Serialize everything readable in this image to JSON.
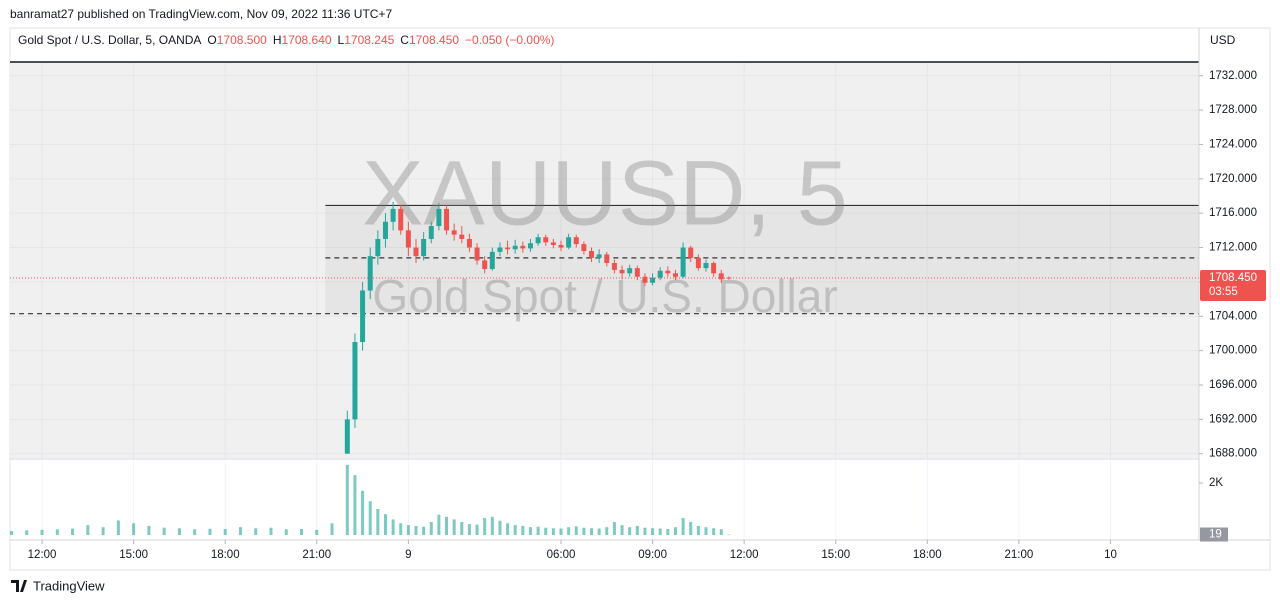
{
  "header": {
    "author_line": "banramat27 published on TradingView.com, Nov 09, 2022 11:36 UTC+7",
    "footer_brand": "TradingView"
  },
  "chart_data": {
    "type": "candlestick",
    "watermark": {
      "symbol": "XAUUSD, 5",
      "description": "Gold Spot / U.S. Dollar"
    },
    "legend": {
      "symbol": "Gold Spot / U.S. Dollar, 5, OANDA",
      "o_label": "O",
      "o": "1708.500",
      "h_label": "H",
      "h": "1708.640",
      "l_label": "L",
      "l": "1708.245",
      "c_label": "C",
      "c": "1708.450",
      "change": "−0.050 (−0.00%)"
    },
    "currency": "USD",
    "countdown": "03:55",
    "up_color": "#26a69a",
    "down_color": "#ef5350",
    "volume_color": "#26a69a",
    "grid": true,
    "xlim": [
      -1.05,
      37.9
    ],
    "xticks": [
      {
        "value": 0,
        "label": "12:00"
      },
      {
        "value": 3,
        "label": "15:00"
      },
      {
        "value": 6,
        "label": "18:00"
      },
      {
        "value": 9,
        "label": "21:00"
      },
      {
        "value": 12,
        "label": "9"
      },
      {
        "value": 17,
        "label": "06:00"
      },
      {
        "value": 20,
        "label": "09:00"
      },
      {
        "value": 23,
        "label": "12:00"
      },
      {
        "value": 26,
        "label": "15:00"
      },
      {
        "value": 29,
        "label": "18:00"
      },
      {
        "value": 32,
        "label": "21:00"
      },
      {
        "value": 35,
        "label": "10"
      }
    ],
    "ylim": [
      1687.5,
      1733.6
    ],
    "yticks": [
      {
        "value": 1688,
        "label": "1688.000"
      },
      {
        "value": 1692,
        "label": "1692.000"
      },
      {
        "value": 1696,
        "label": "1696.000"
      },
      {
        "value": 1700,
        "label": "1700.000"
      },
      {
        "value": 1704,
        "label": "1704.000"
      },
      {
        "value": 1708,
        "label": "1708.000"
      },
      {
        "value": 1712,
        "label": "1712.000"
      },
      {
        "value": 1716,
        "label": "1716.000"
      },
      {
        "value": 1720,
        "label": "1720.000"
      },
      {
        "value": 1724,
        "label": "1724.000"
      },
      {
        "value": 1728,
        "label": "1728.000"
      },
      {
        "value": 1732,
        "label": "1732.000"
      }
    ],
    "levels": [
      {
        "value": 1716.9,
        "style": "solid",
        "from": 9.28
      },
      {
        "value": 1710.8,
        "style": "dashed",
        "from": 9.28
      },
      {
        "value": 1704.3,
        "style": "dashed"
      }
    ],
    "zone": {
      "from": 9.28,
      "range": [
        1704.3,
        1716.9
      ]
    },
    "x": [
      10,
      10.25,
      10.5,
      10.75,
      11,
      11.25,
      11.5,
      11.75,
      12,
      12.25,
      12.5,
      12.75,
      13,
      13.25,
      13.5,
      13.75,
      14,
      14.25,
      14.5,
      14.75,
      15,
      15.25,
      15.5,
      15.75,
      16,
      16.25,
      16.5,
      16.75,
      17,
      17.25,
      17.5,
      17.75,
      18,
      18.25,
      18.5,
      18.75,
      19,
      19.25,
      19.5,
      19.75,
      20,
      20.25,
      20.5,
      20.75,
      21,
      21.25,
      21.5,
      21.75,
      22,
      22.25,
      22.5
    ],
    "open": [
      1688,
      1692,
      1701,
      1707,
      1711,
      1713,
      1715,
      1716.5,
      1714,
      1712,
      1711,
      1713,
      1714.5,
      1716.5,
      1714,
      1713.5,
      1713,
      1712,
      1710.5,
      1709.5,
      1711.5,
      1712,
      1711.8,
      1712.2,
      1711.9,
      1712.5,
      1713.2,
      1712.6,
      1712.3,
      1712,
      1713.2,
      1712.4,
      1711.6,
      1710.8,
      1711.2,
      1710.2,
      1709.4,
      1709,
      1709.6,
      1708.6,
      1707.9,
      1708.5,
      1709.3,
      1709,
      1708.6,
      1712,
      1710.8,
      1709.6,
      1710.2,
      1709,
      1708.5
    ],
    "high": [
      1693,
      1702,
      1708,
      1712,
      1714,
      1716,
      1717.3,
      1717,
      1715,
      1713,
      1713.8,
      1715,
      1717.2,
      1717,
      1714.8,
      1714.5,
      1713.6,
      1712.5,
      1711,
      1712,
      1712.6,
      1712.8,
      1712.9,
      1712.7,
      1713,
      1713.6,
      1713.5,
      1713,
      1712.8,
      1713.6,
      1713.5,
      1712.7,
      1712,
      1711.8,
      1711.5,
      1710.6,
      1709.9,
      1710,
      1709.9,
      1709,
      1709,
      1709.7,
      1709.8,
      1709.4,
      1712.6,
      1712.2,
      1711.2,
      1710.6,
      1710.4,
      1709.4,
      1708.64
    ],
    "low": [
      1688,
      1691,
      1700,
      1706,
      1710,
      1712,
      1714,
      1713.5,
      1711,
      1710.2,
      1710.5,
      1712.5,
      1714,
      1713.5,
      1712.8,
      1712.5,
      1711.5,
      1710,
      1709,
      1709.3,
      1711,
      1711.2,
      1711.3,
      1711.4,
      1711.5,
      1712.2,
      1712.2,
      1711.9,
      1711.6,
      1711.8,
      1712,
      1711.2,
      1710.3,
      1710.2,
      1709.8,
      1709,
      1708.3,
      1708.6,
      1708.2,
      1707.5,
      1707.6,
      1708.2,
      1708.6,
      1708.2,
      1708.4,
      1710.3,
      1709.3,
      1709.2,
      1708.6,
      1707.9,
      1708.245
    ],
    "close": [
      1692,
      1701,
      1707,
      1711,
      1713,
      1715,
      1716.5,
      1714,
      1712,
      1711,
      1713,
      1714.5,
      1716.5,
      1714,
      1713.5,
      1713,
      1712,
      1710.5,
      1709.5,
      1711.5,
      1712,
      1711.8,
      1712.2,
      1711.9,
      1712.5,
      1713.2,
      1712.6,
      1712.3,
      1712,
      1713.2,
      1712.4,
      1711.6,
      1710.8,
      1711.2,
      1710.2,
      1709.4,
      1709,
      1709.6,
      1708.6,
      1707.9,
      1708.5,
      1709.3,
      1709,
      1708.6,
      1712,
      1710.8,
      1709.6,
      1710.2,
      1709,
      1708.3,
      1708.45
    ],
    "volume": {
      "ylim": [
        0,
        2885
      ],
      "yticks": [
        {
          "value": 2000,
          "label": "2K"
        }
      ],
      "x": [
        -1,
        -0.5,
        0,
        0.5,
        1,
        1.5,
        2,
        2.5,
        3,
        3.5,
        4,
        4.5,
        5,
        5.5,
        6,
        6.5,
        7,
        7.5,
        8,
        8.5,
        9,
        9.5,
        10,
        10.25,
        10.5,
        10.75,
        11,
        11.25,
        11.5,
        11.75,
        12,
        12.25,
        12.5,
        12.75,
        13,
        13.25,
        13.5,
        13.75,
        14,
        14.25,
        14.5,
        14.75,
        15,
        15.25,
        15.5,
        15.75,
        16,
        16.25,
        16.5,
        16.75,
        17,
        17.25,
        17.5,
        17.75,
        18,
        18.25,
        18.5,
        18.75,
        19,
        19.25,
        19.5,
        19.75,
        20,
        20.25,
        20.5,
        20.75,
        21,
        21.25,
        21.5,
        21.75,
        22,
        22.25,
        22.5
      ],
      "values": [
        150,
        180,
        200,
        220,
        250,
        380,
        300,
        560,
        450,
        350,
        280,
        260,
        220,
        240,
        230,
        300,
        260,
        280,
        220,
        230,
        200,
        450,
        2700,
        2300,
        1700,
        1300,
        1000,
        800,
        600,
        450,
        380,
        350,
        320,
        500,
        780,
        700,
        600,
        500,
        420,
        400,
        650,
        700,
        550,
        450,
        380,
        350,
        300,
        320,
        280,
        260,
        250,
        300,
        330,
        280,
        260,
        250,
        300,
        500,
        380,
        300,
        350,
        280,
        260,
        250,
        230,
        300,
        650,
        500,
        350,
        300,
        260,
        220,
        19
      ]
    }
  }
}
